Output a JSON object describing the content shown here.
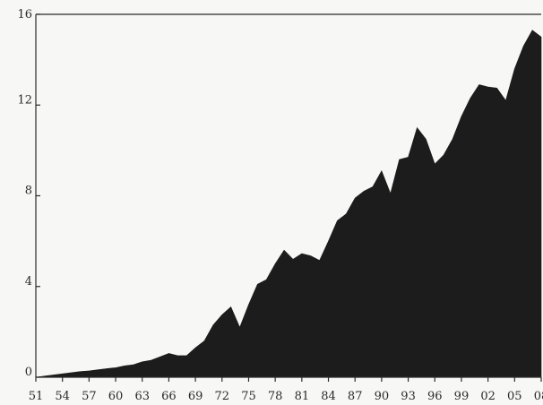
{
  "chart_data": {
    "type": "area",
    "title": "",
    "xlabel": "",
    "ylabel": "",
    "xlim": [
      1951,
      2008
    ],
    "ylim": [
      0,
      16
    ],
    "grid": false,
    "legend": "none",
    "fill_color": "#1c1c1c",
    "x_ticks": [
      1951,
      1954,
      1957,
      1960,
      1963,
      1966,
      1969,
      1972,
      1975,
      1978,
      1981,
      1984,
      1987,
      1990,
      1993,
      1996,
      1999,
      2002,
      2005,
      2008
    ],
    "x_tick_labels": [
      "51",
      "54",
      "57",
      "60",
      "63",
      "66",
      "69",
      "72",
      "75",
      "78",
      "81",
      "84",
      "87",
      "90",
      "93",
      "96",
      "99",
      "02",
      "05",
      "08"
    ],
    "y_ticks": [
      0,
      4,
      8,
      12,
      16
    ],
    "y_tick_labels": [
      "0",
      "4",
      "8",
      "12",
      "16"
    ],
    "series": [
      {
        "x": [
          1951,
          1952,
          1953,
          1954,
          1955,
          1956,
          1957,
          1958,
          1959,
          1960,
          1961,
          1962,
          1963,
          1964,
          1965,
          1966,
          1967,
          1968,
          1969,
          1970,
          1971,
          1972,
          1973,
          1974,
          1975,
          1976,
          1977,
          1978,
          1979,
          1980,
          1981,
          1982,
          1983,
          1984,
          1985,
          1986,
          1987,
          1988,
          1989,
          1990,
          1991,
          1992,
          1993,
          1994,
          1995,
          1996,
          1997,
          1998,
          1999,
          2000,
          2001,
          2002,
          2003,
          2004,
          2005,
          2006,
          2007,
          2008
        ],
        "values": [
          0.0,
          0.05,
          0.1,
          0.15,
          0.2,
          0.25,
          0.28,
          0.33,
          0.38,
          0.42,
          0.5,
          0.55,
          0.68,
          0.75,
          0.9,
          1.05,
          0.95,
          0.95,
          1.3,
          1.6,
          2.3,
          2.75,
          3.1,
          2.2,
          3.2,
          4.1,
          4.3,
          5.0,
          5.6,
          5.2,
          5.45,
          5.35,
          5.15,
          6.0,
          6.9,
          7.2,
          7.9,
          8.2,
          8.4,
          9.1,
          8.1,
          9.6,
          9.7,
          11.0,
          10.5,
          9.4,
          9.8,
          10.5,
          11.5,
          12.3,
          12.9,
          12.8,
          12.75,
          12.2,
          13.6,
          14.6,
          15.3,
          15.0
        ]
      }
    ]
  }
}
